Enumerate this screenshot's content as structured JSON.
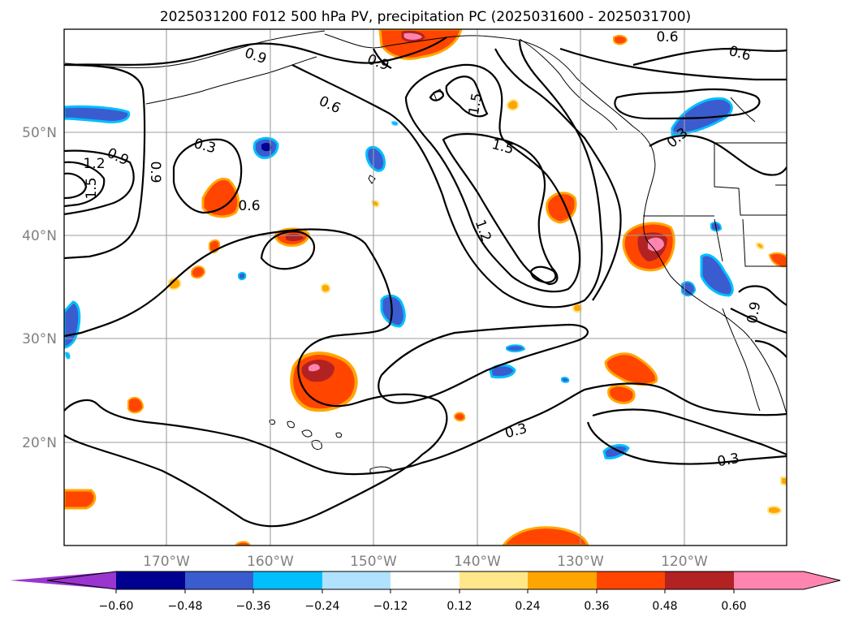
{
  "title": "2025031200 F012 500 hPa PV, precipitation PC (2025031600 - 2025031700)",
  "lat_labels": [
    "50°N",
    "40°N",
    "30°N",
    "20°N"
  ],
  "lon_labels": [
    "170°W",
    "160°W",
    "150°W",
    "140°W",
    "130°W",
    "120°W"
  ],
  "contour_labels": [
    "0.9",
    "0.9",
    "0.6",
    "0.3",
    "0.6",
    "0.9",
    "1.2",
    "1.5",
    "0.9",
    "0.6",
    "1.5",
    "1.5",
    "1.2",
    "0.3",
    "0.6",
    "0.9",
    "0.3",
    "0.3",
    "0.9"
  ],
  "colorbar": {
    "ticks": [
      "−0.60",
      "−0.48",
      "−0.36",
      "−0.24",
      "−0.12",
      "0.12",
      "0.24",
      "0.36",
      "0.48",
      "0.60"
    ],
    "colors": [
      "#9a35d0",
      "#000090",
      "#3a5ccf",
      "#00bfff",
      "#b0e2ff",
      "#ffffff",
      "#ffe78a",
      "#ffa500",
      "#ff4500",
      "#b22222",
      "#ff85b0",
      "#ff85b0"
    ]
  },
  "colors": {
    "pink": "#ff85b0",
    "red": "#b22222",
    "orangered": "#ff4500",
    "orange": "#ffa500",
    "yellow": "#ffe78a",
    "lightblue": "#b0e2ff",
    "skyblue": "#00bfff",
    "blue": "#3a5ccf",
    "navy": "#000090"
  }
}
